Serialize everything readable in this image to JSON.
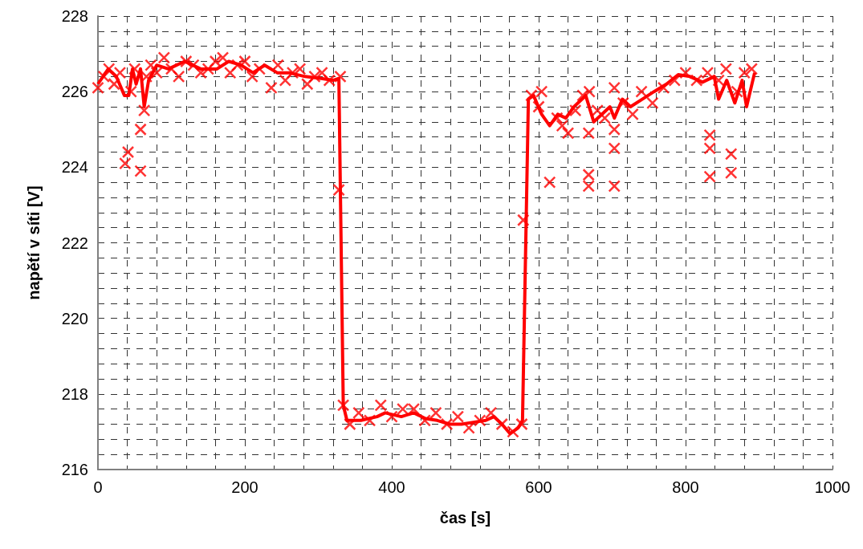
{
  "chart_data": {
    "type": "line",
    "xlabel": "čas [s]",
    "ylabel": "napětí v síti [V]",
    "xlim": [
      0,
      1000
    ],
    "ylim": [
      216,
      228
    ],
    "xticks": [
      0,
      {
        "value": 40,
        "label": null
      },
      {
        "value": 80,
        "label": null
      },
      {
        "value": 120,
        "label": null
      },
      {
        "value": 160,
        "label": null
      },
      200,
      {
        "value": 240,
        "label": null
      },
      {
        "value": 280,
        "label": null
      },
      {
        "value": 320,
        "label": null
      },
      {
        "value": 360,
        "label": null
      },
      400,
      {
        "value": 440,
        "label": null
      },
      {
        "value": 480,
        "label": null
      },
      {
        "value": 520,
        "label": null
      },
      {
        "value": 560,
        "label": null
      },
      600,
      {
        "value": 640,
        "label": null
      },
      {
        "value": 680,
        "label": null
      },
      {
        "value": 720,
        "label": null
      },
      {
        "value": 760,
        "label": null
      },
      800,
      {
        "value": 840,
        "label": null
      },
      {
        "value": 880,
        "label": null
      },
      {
        "value": 920,
        "label": null
      },
      {
        "value": 960,
        "label": null
      },
      1000
    ],
    "yticks": [
      216,
      {
        "value": 216.4,
        "label": null
      },
      {
        "value": 216.8,
        "label": null
      },
      {
        "value": 217.2,
        "label": null
      },
      {
        "value": 217.6,
        "label": null
      },
      218,
      {
        "value": 218.4,
        "label": null
      },
      {
        "value": 218.8,
        "label": null
      },
      {
        "value": 219.2,
        "label": null
      },
      {
        "value": 219.6,
        "label": null
      },
      220,
      {
        "value": 220.4,
        "label": null
      },
      {
        "value": 220.8,
        "label": null
      },
      {
        "value": 221.2,
        "label": null
      },
      {
        "value": 221.6,
        "label": null
      },
      222,
      {
        "value": 222.4,
        "label": null
      },
      {
        "value": 222.8,
        "label": null
      },
      {
        "value": 223.2,
        "label": null
      },
      {
        "value": 223.6,
        "label": null
      },
      224,
      {
        "value": 224.4,
        "label": null
      },
      {
        "value": 224.8,
        "label": null
      },
      {
        "value": 225.2,
        "label": null
      },
      {
        "value": 225.6,
        "label": null
      },
      226,
      {
        "value": 226.4,
        "label": null
      },
      {
        "value": 226.8,
        "label": null
      },
      {
        "value": 227.2,
        "label": null
      },
      {
        "value": 227.6,
        "label": null
      },
      228
    ],
    "grid": true,
    "series": [
      {
        "type": "scatter",
        "marker": "cross",
        "color": "#ff0000",
        "x": [
          0,
          8,
          15,
          22,
          30,
          37,
          41,
          45,
          50,
          58,
          58,
          63,
          66,
          72,
          80,
          90,
          100,
          110,
          120,
          130,
          140,
          150,
          160,
          170,
          180,
          190,
          200,
          210,
          220,
          236,
          245,
          255,
          265,
          275,
          285,
          295,
          305,
          315,
          328,
          330,
          334,
          343,
          355,
          370,
          385,
          400,
          415,
          430,
          445,
          460,
          475,
          490,
          505,
          520,
          535,
          550,
          565,
          577,
          579,
          590,
          600,
          604,
          615,
          625,
          632,
          640,
          650,
          660,
          668,
          668,
          668,
          669,
          680,
          690,
          703,
          703,
          703,
          703,
          715,
          728,
          740,
          755,
          770,
          785,
          800,
          815,
          830,
          833,
          833,
          833,
          845,
          855,
          862,
          862,
          870,
          880,
          890
        ],
        "values": [
          226.1,
          226.4,
          226.6,
          226.2,
          226.5,
          224.1,
          224.4,
          226.0,
          226.6,
          225.0,
          223.9,
          225.5,
          226.4,
          226.7,
          226.5,
          226.9,
          226.6,
          226.4,
          226.8,
          226.7,
          226.5,
          226.6,
          226.8,
          226.9,
          226.5,
          226.7,
          226.8,
          226.4,
          226.6,
          226.1,
          226.7,
          226.3,
          226.5,
          226.6,
          226.2,
          226.4,
          226.5,
          226.3,
          223.4,
          226.4,
          217.7,
          217.2,
          217.5,
          217.3,
          217.7,
          217.4,
          217.6,
          217.6,
          217.3,
          217.5,
          217.2,
          217.4,
          217.1,
          217.3,
          217.5,
          217.2,
          217.0,
          217.2,
          222.6,
          225.9,
          225.6,
          226.0,
          223.6,
          225.3,
          225.1,
          224.9,
          225.5,
          225.9,
          224.9,
          223.8,
          223.5,
          226.0,
          225.5,
          225.3,
          226.1,
          225.0,
          224.5,
          223.5,
          225.7,
          225.4,
          226.0,
          225.7,
          226.1,
          226.3,
          226.5,
          226.3,
          226.5,
          224.85,
          224.5,
          223.75,
          226.3,
          226.6,
          224.35,
          223.85,
          226.0,
          226.5,
          226.6
        ]
      },
      {
        "marker": "none",
        "line_style": "solid",
        "color": "#ff0000",
        "x": [
          0,
          14,
          25,
          36,
          42,
          47,
          52,
          58,
          63,
          69,
          80,
          96,
          118,
          140,
          162,
          178,
          195,
          211,
          227,
          244,
          260,
          282,
          304,
          320,
          328,
          334,
          339,
          358,
          380,
          391,
          413,
          430,
          446,
          462,
          479,
          495,
          511,
          528,
          539,
          550,
          561,
          572,
          578,
          586,
          593,
          604,
          615,
          626,
          637,
          648,
          659,
          664,
          675,
          686,
          697,
          703,
          714,
          725,
          741,
          757,
          774,
          790,
          806,
          823,
          839,
          845,
          856,
          867,
          877,
          883,
          894
        ],
        "values": [
          226.2,
          226.6,
          226.4,
          225.9,
          225.9,
          226.6,
          226.2,
          226.6,
          225.6,
          226.3,
          226.7,
          226.6,
          226.8,
          226.6,
          226.6,
          226.8,
          226.7,
          226.5,
          226.7,
          226.5,
          226.5,
          226.4,
          226.35,
          226.3,
          226.35,
          217.7,
          217.3,
          217.3,
          217.4,
          217.5,
          217.4,
          217.5,
          217.35,
          217.3,
          217.2,
          217.2,
          217.25,
          217.3,
          217.4,
          217.2,
          216.95,
          217.1,
          217.3,
          225.8,
          225.9,
          225.4,
          225.1,
          225.4,
          225.3,
          225.6,
          225.8,
          225.9,
          225.2,
          225.4,
          225.6,
          225.3,
          225.8,
          225.6,
          225.8,
          226.0,
          226.2,
          226.45,
          226.4,
          226.25,
          226.4,
          225.8,
          226.3,
          225.7,
          226.3,
          225.6,
          226.5
        ]
      }
    ]
  }
}
